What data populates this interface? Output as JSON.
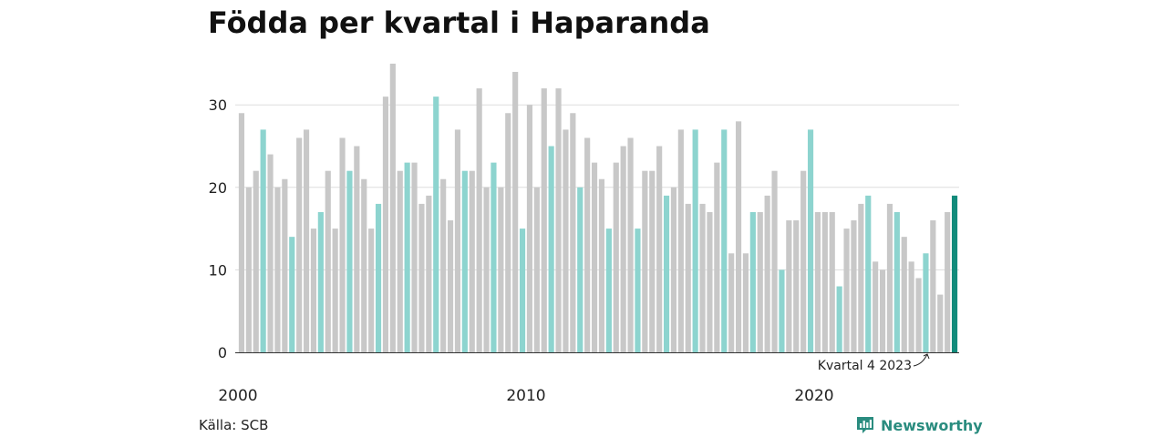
{
  "title": "Födda per kvartal i Haparanda",
  "source": "Källa: SCB",
  "brand": "Newsworthy",
  "colors": {
    "gray": "#c8c8c8",
    "quarter_highlight": "#8dd4cf",
    "latest": "#128b7b",
    "grid": "#dddddd",
    "axis": "#333333"
  },
  "chart_data": {
    "type": "bar",
    "title": "Födda per kvartal i Haparanda",
    "xlabel": "",
    "ylabel": "",
    "ylim": [
      0,
      35
    ],
    "y_ticks": [
      "0",
      "10",
      "20",
      "30"
    ],
    "x_tick_labels": [
      "2000",
      "2010",
      "2020"
    ],
    "grid": "horizontal",
    "annotation": "Kvartal 4 2023",
    "start_period": "2000 kv1",
    "highlight_rule": "kvartal 4 markerat i turkos, senaste kvartal mörkgrönt",
    "values": [
      29,
      20,
      22,
      27,
      24,
      20,
      21,
      14,
      26,
      27,
      15,
      17,
      22,
      15,
      26,
      22,
      25,
      21,
      15,
      18,
      31,
      35,
      22,
      23,
      23,
      18,
      19,
      31,
      21,
      16,
      27,
      22,
      22,
      32,
      20,
      23,
      20,
      29,
      34,
      15,
      30,
      20,
      32,
      25,
      32,
      27,
      29,
      20,
      26,
      23,
      21,
      15,
      23,
      25,
      26,
      15,
      22,
      22,
      25,
      19,
      20,
      27,
      18,
      27,
      18,
      17,
      23,
      27,
      12,
      28,
      12,
      17,
      17,
      19,
      22,
      10,
      16,
      16,
      22,
      27,
      17,
      17,
      17,
      8,
      15,
      16,
      18,
      19,
      11,
      10,
      18,
      17,
      14,
      11,
      9,
      12,
      16,
      7,
      17,
      19
    ]
  }
}
